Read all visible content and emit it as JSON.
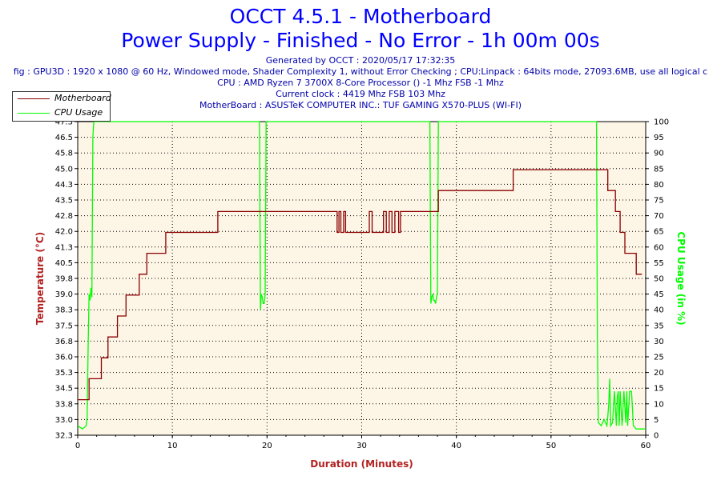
{
  "header": {
    "title_line1": "OCCT 4.5.1 - Motherboard",
    "title_line2": "Power Supply - Finished - No Error - 1h 00m 00s",
    "info_lines": [
      "Generated by OCCT : 2020/05/17 17:32:35",
      "fig : GPU3D : 1920 x 1080 @ 60 Hz, Windowed mode, Shader Complexity 1, without Error Checking ; CPU:Linpack : 64bits mode, 27093.6MB, use all logical c",
      "CPU : AMD Ryzen 7 3700X 8-Core Processor () -1 Mhz FSB -1 Mhz",
      "Current clock : 4419 Mhz FSB 103 Mhz",
      "MotherBoard : ASUSTeK COMPUTER INC.: TUF GAMING X570-PLUS (WI-FI)"
    ]
  },
  "colors": {
    "title": "#0000ff",
    "info": "#0000aa",
    "plot_bg": "#fdf5e6",
    "temperature": "#8b0000",
    "cpu_usage": "#00ff00",
    "axis_title": "#b22222"
  },
  "chart_data": {
    "type": "line",
    "xlabel": "Duration (Minutes)",
    "ylabel_left": "Temperature (°C)",
    "ylabel_right": "CPU Usage (in %)",
    "xlim": [
      0,
      60
    ],
    "ylim_left": [
      32.3,
      47.3
    ],
    "ylim_right": [
      0,
      100
    ],
    "x_ticks": [
      0,
      10,
      20,
      30,
      40,
      50,
      60
    ],
    "y_left_ticks": [
      "32.3",
      "33.0",
      "33.8",
      "34.5",
      "35.3",
      "36.0",
      "36.8",
      "37.5",
      "38.3",
      "39.0",
      "39.8",
      "40.5",
      "41.3",
      "42.0",
      "42.8",
      "43.5",
      "44.3",
      "45.0",
      "45.8",
      "46.5",
      "47.3"
    ],
    "y_right_ticks": [
      0,
      5,
      10,
      15,
      20,
      25,
      30,
      35,
      40,
      45,
      50,
      55,
      60,
      65,
      70,
      75,
      80,
      85,
      90,
      95,
      100
    ],
    "grid": "dotted",
    "legend_position": "top-left",
    "series": [
      {
        "name": "Motherboard",
        "axis": "left",
        "x": [
          0,
          1.2,
          1.2,
          2.5,
          2.5,
          3.2,
          3.2,
          4.2,
          4.2,
          5.1,
          5.1,
          6.0,
          6.0,
          6.5,
          6.5,
          7.3,
          7.3,
          8.5,
          8.5,
          9.3,
          9.3,
          14.8,
          14.8,
          27.4,
          27.4,
          27.6,
          27.6,
          27.8,
          27.8,
          28.1,
          28.1,
          28.3,
          28.3,
          28.5,
          28.5,
          29.2,
          29.2,
          30.8,
          30.8,
          31.1,
          31.1,
          32.3,
          32.3,
          32.6,
          32.6,
          32.9,
          32.9,
          33.2,
          33.2,
          33.5,
          33.5,
          33.9,
          33.9,
          34.1,
          34.1,
          38.1,
          38.1,
          46.0,
          46.0,
          56.0,
          56.0,
          56.8,
          56.8,
          57.3,
          57.3,
          57.8,
          57.8,
          58.3,
          58.3,
          59.0,
          59.0,
          59.6,
          59.6
        ],
        "y": [
          34,
          34,
          35,
          35,
          36,
          36,
          37,
          37,
          38,
          38,
          39,
          39,
          39,
          39,
          40,
          40,
          41,
          41,
          41,
          41,
          42,
          42,
          43,
          43,
          42,
          42,
          43,
          43,
          42,
          42,
          43,
          43,
          42,
          42,
          42,
          42,
          42,
          42,
          43,
          43,
          42,
          42,
          43,
          43,
          42,
          42,
          43,
          43,
          42,
          42,
          43,
          43,
          42,
          42,
          43,
          43,
          44,
          44,
          45,
          45,
          44,
          44,
          43,
          43,
          42,
          42,
          41,
          41,
          41,
          41,
          40,
          40,
          40
        ]
      },
      {
        "name": "CPU Usage",
        "axis": "right",
        "x": [
          0,
          0.5,
          0.9,
          1.0,
          1.1,
          1.2,
          1.3,
          1.4,
          1.5,
          1.6,
          1.7,
          1.8,
          19.2,
          19.3,
          19.4,
          19.5,
          19.6,
          19.7,
          19.8,
          19.9,
          20.0,
          37.2,
          37.3,
          37.4,
          37.5,
          37.6,
          37.7,
          37.8,
          37.9,
          38.0,
          38.1,
          38.2,
          54.8,
          54.9,
          55.0,
          55.3,
          55.6,
          55.9,
          56.0,
          56.1,
          56.2,
          56.3,
          56.5,
          56.7,
          56.9,
          57.0,
          57.1,
          57.2,
          57.3,
          57.5,
          57.7,
          57.9,
          58.0,
          58.1,
          58.3,
          58.5,
          58.7,
          59.0,
          59.5,
          60.0
        ],
        "y": [
          3,
          2,
          3,
          6,
          28,
          45,
          43,
          47,
          44,
          95,
          100,
          100,
          100,
          40,
          45,
          44,
          42,
          42,
          45,
          100,
          100,
          100,
          42,
          44,
          45,
          43,
          43,
          42,
          44,
          45,
          100,
          100,
          100,
          30,
          4,
          3,
          5,
          3,
          6,
          10,
          18,
          3,
          4,
          14,
          3,
          12,
          14,
          3,
          14,
          3,
          14,
          4,
          14,
          3,
          14,
          14,
          3,
          2,
          2,
          2
        ]
      }
    ]
  }
}
